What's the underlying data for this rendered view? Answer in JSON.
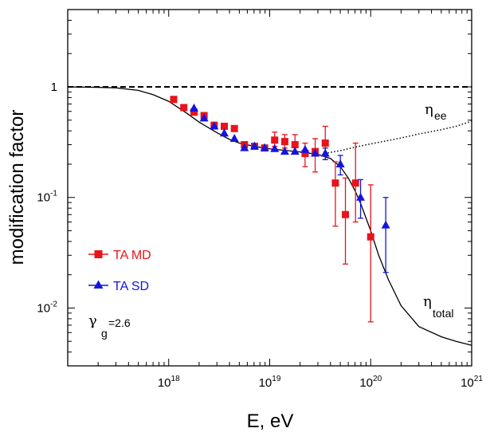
{
  "chart_data": {
    "type": "scatter",
    "xlabel": "E, eV",
    "ylabel": "modification factor",
    "xscale": "log",
    "yscale": "log",
    "xlim": [
      1e+17,
      1e+21
    ],
    "ylim": [
      0.003,
      5
    ],
    "x_ticks": [
      {
        "value": 1e+18,
        "base": "10",
        "exp": "18"
      },
      {
        "value": 1e+19,
        "base": "10",
        "exp": "19"
      },
      {
        "value": 1e+20,
        "base": "10",
        "exp": "20"
      },
      {
        "value": 1e+21,
        "base": "10",
        "exp": "21"
      }
    ],
    "y_ticks": [
      {
        "value": 1,
        "base": "1",
        "exp": ""
      },
      {
        "value": 0.1,
        "base": "10",
        "exp": "-1"
      },
      {
        "value": 0.01,
        "base": "10",
        "exp": "-2"
      }
    ],
    "grid": false,
    "legend_position": "bottom-left",
    "legend": [
      {
        "label": "TA MD",
        "marker": "square",
        "color": "#e8141b"
      },
      {
        "label": "TA SD",
        "marker": "triangle",
        "color": "#1414e0"
      }
    ],
    "annotations": {
      "gamma_symbol": "γ",
      "gamma_sub": "g",
      "gamma_value": "=2.6",
      "eta_ee_symbol": "η",
      "eta_ee_sub": "ee",
      "eta_total_symbol": "η",
      "eta_total_sub": "total"
    },
    "reference_line": {
      "y": 1,
      "style": "dashed"
    },
    "curves": [
      {
        "id": "eta_total",
        "style": "solid",
        "points": [
          [
            1e+17,
            1
          ],
          [
            2e+17,
            0.99
          ],
          [
            3e+17,
            0.98
          ],
          [
            5e+17,
            0.93
          ],
          [
            7e+17,
            0.85
          ],
          [
            1e+18,
            0.74
          ],
          [
            1.5e+18,
            0.58
          ],
          [
            2e+18,
            0.48
          ],
          [
            3e+18,
            0.385
          ],
          [
            4e+18,
            0.335
          ],
          [
            5e+18,
            0.31
          ],
          [
            7e+18,
            0.29
          ],
          [
            1e+19,
            0.275
          ],
          [
            1.5e+19,
            0.265
          ],
          [
            2e+19,
            0.258
          ],
          [
            3e+19,
            0.245
          ],
          [
            4e+19,
            0.225
          ],
          [
            5e+19,
            0.19
          ],
          [
            6e+19,
            0.15
          ],
          [
            7e+19,
            0.115
          ],
          [
            8e+19,
            0.087
          ],
          [
            1e+20,
            0.05
          ],
          [
            1.2e+20,
            0.03
          ],
          [
            1.5e+20,
            0.018
          ],
          [
            2e+20,
            0.0105
          ],
          [
            3e+20,
            0.0068
          ],
          [
            5e+20,
            0.0055
          ],
          [
            7e+20,
            0.005
          ],
          [
            1e+21,
            0.0046
          ]
        ]
      },
      {
        "id": "eta_ee",
        "style": "dotted",
        "points": [
          [
            3.5e+19,
            0.25
          ],
          [
            5e+19,
            0.265
          ],
          [
            7e+19,
            0.285
          ],
          [
            1e+20,
            0.305
          ],
          [
            2e+20,
            0.345
          ],
          [
            3e+20,
            0.375
          ],
          [
            5e+20,
            0.41
          ],
          [
            7e+20,
            0.44
          ],
          [
            1e+21,
            0.49
          ]
        ]
      }
    ],
    "series": [
      {
        "name": "TA MD",
        "marker": "square",
        "color": "#e8141b",
        "points": [
          {
            "x": 1.12e+18,
            "y": 0.77
          },
          {
            "x": 1.41e+18,
            "y": 0.65
          },
          {
            "x": 1.78e+18,
            "y": 0.59
          },
          {
            "x": 2.24e+18,
            "y": 0.55
          },
          {
            "x": 2.82e+18,
            "y": 0.45
          },
          {
            "x": 3.55e+18,
            "y": 0.44
          },
          {
            "x": 4.47e+18,
            "y": 0.42
          },
          {
            "x": 5.62e+18,
            "y": 0.3
          },
          {
            "x": 7.08e+18,
            "y": 0.29
          },
          {
            "x": 8.91e+18,
            "y": 0.28
          },
          {
            "x": 1.12e+19,
            "y": 0.33,
            "yerr": [
              0.29,
              0.39
            ]
          },
          {
            "x": 1.41e+19,
            "y": 0.32,
            "yerr": [
              0.28,
              0.37
            ]
          },
          {
            "x": 1.78e+19,
            "y": 0.3,
            "yerr": [
              0.26,
              0.37
            ]
          },
          {
            "x": 2.24e+19,
            "y": 0.25,
            "yerr": [
              0.19,
              0.31
            ]
          },
          {
            "x": 2.82e+19,
            "y": 0.26,
            "yerr": [
              0.17,
              0.34
            ]
          },
          {
            "x": 3.55e+19,
            "y": 0.31,
            "yerr": [
              0.22,
              0.44
            ]
          },
          {
            "x": 4.47e+19,
            "y": 0.135,
            "yerr": [
              0.055,
              0.21
            ]
          },
          {
            "x": 5.62e+19,
            "y": 0.07,
            "yerr": [
              0.025,
              0.15
            ]
          },
          {
            "x": 7.08e+19,
            "y": 0.135,
            "yerr": [
              0.06,
              0.31
            ]
          },
          {
            "x": 1e+20,
            "y": 0.044,
            "yerr": [
              0.0075,
              0.13
            ]
          }
        ]
      },
      {
        "name": "TA SD",
        "marker": "triangle",
        "color": "#1414e0",
        "points": [
          {
            "x": 1.78e+18,
            "y": 0.64
          },
          {
            "x": 2.24e+18,
            "y": 0.52
          },
          {
            "x": 2.82e+18,
            "y": 0.44
          },
          {
            "x": 3.55e+18,
            "y": 0.38
          },
          {
            "x": 4.47e+18,
            "y": 0.34
          },
          {
            "x": 5.62e+18,
            "y": 0.28
          },
          {
            "x": 7.08e+18,
            "y": 0.29
          },
          {
            "x": 8.91e+18,
            "y": 0.28
          },
          {
            "x": 1.12e+19,
            "y": 0.275
          },
          {
            "x": 1.41e+19,
            "y": 0.26
          },
          {
            "x": 1.78e+19,
            "y": 0.26
          },
          {
            "x": 2.24e+19,
            "y": 0.27
          },
          {
            "x": 2.82e+19,
            "y": 0.25
          },
          {
            "x": 3.55e+19,
            "y": 0.25,
            "yerr": [
              0.22,
              0.28
            ]
          },
          {
            "x": 5.01e+19,
            "y": 0.2,
            "yerr": [
              0.16,
              0.24
            ]
          },
          {
            "x": 7.94e+19,
            "y": 0.1,
            "yerr": [
              0.065,
              0.145
            ]
          },
          {
            "x": 1.41e+20,
            "y": 0.056,
            "yerr": [
              0.021,
              0.1
            ]
          }
        ]
      }
    ]
  }
}
